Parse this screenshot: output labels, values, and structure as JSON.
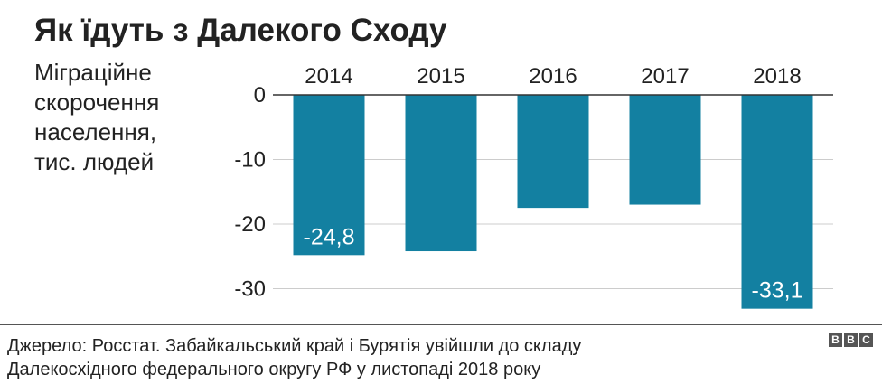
{
  "header": {
    "title": "Як їдуть з Далекого Сходу"
  },
  "chart_data": {
    "type": "bar",
    "title": "Як їдуть з Далекого Сходу",
    "ylabel_lines": [
      "Міграційне",
      "скорочення",
      "населення,",
      "тис. людей"
    ],
    "categories": [
      "2014",
      "2015",
      "2016",
      "2017",
      "2018"
    ],
    "values": [
      -24.8,
      -24.2,
      -17.5,
      -17.0,
      -33.1
    ],
    "data_labels": [
      "-24,8",
      "",
      "",
      "",
      "-33,1"
    ],
    "y_ticks": [
      0,
      -10,
      -20,
      -30
    ],
    "y_tick_labels": [
      "0",
      "-10",
      "-20",
      "-30"
    ],
    "ylim": [
      -33.1,
      0
    ],
    "grid": true,
    "bar_color": "#1380a1"
  },
  "footer": {
    "source_lines": [
      "Джерело: Росстат. Забайкальський край і Бурятія увійшли до складу",
      "Далекосхідного федерального округу РФ у листопаді 2018 року"
    ],
    "logo_letters": [
      "B",
      "B",
      "C"
    ]
  }
}
